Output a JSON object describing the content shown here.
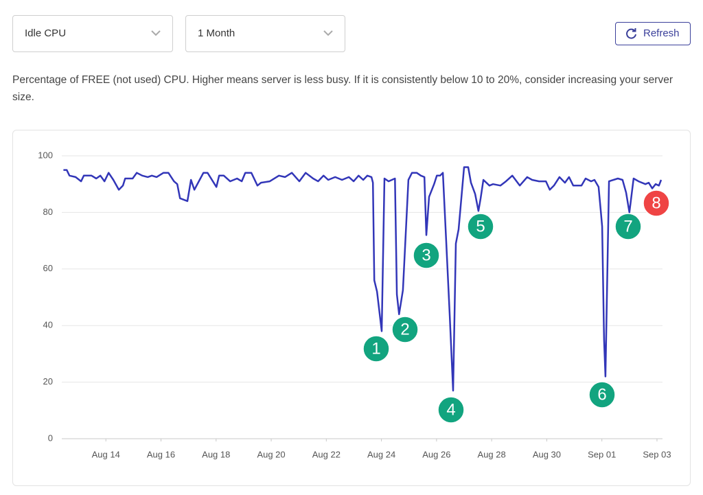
{
  "ui": {
    "metric_select": "Idle CPU",
    "range_select": "1 Month",
    "refresh_button": "Refresh",
    "description": "Percentage of FREE (not used) CPU. Higher means server is less busy. If it is consistently below 10 to 20%, consider increasing your server size."
  },
  "chart_data": {
    "type": "line",
    "color": "#3236b8",
    "x": [
      12.46,
      12.58,
      12.68,
      12.9,
      13.1,
      13.2,
      13.48,
      13.65,
      13.8,
      13.95,
      14.1,
      14.27,
      14.47,
      14.62,
      14.7,
      14.97,
      15.12,
      15.32,
      15.52,
      15.67,
      15.84,
      16.09,
      16.27,
      16.47,
      16.59,
      16.69,
      16.96,
      17.09,
      17.21,
      17.54,
      17.69,
      18.01,
      18.11,
      18.28,
      18.51,
      18.76,
      18.93,
      19.06,
      19.28,
      19.5,
      19.63,
      19.95,
      20.28,
      20.5,
      20.75,
      21.02,
      21.25,
      21.52,
      21.7,
      21.9,
      22.07,
      22.32,
      22.57,
      22.82,
      22.99,
      23.17,
      23.34,
      23.49,
      23.64,
      23.69,
      23.74,
      23.84,
      24.01,
      24.11,
      24.26,
      24.49,
      24.56,
      24.64,
      24.78,
      24.98,
      25.11,
      25.28,
      25.43,
      25.56,
      25.63,
      25.73,
      25.91,
      26.01,
      26.13,
      26.23,
      26.35,
      26.48,
      26.6,
      26.7,
      26.8,
      27.0,
      27.15,
      27.25,
      27.4,
      27.52,
      27.6,
      27.7,
      27.92,
      28.05,
      28.32,
      28.52,
      28.75,
      29.02,
      29.29,
      29.47,
      29.72,
      29.97,
      30.11,
      30.26,
      30.46,
      30.66,
      30.81,
      30.96,
      31.26,
      31.41,
      31.61,
      31.73,
      31.88,
      31.96,
      32.01,
      32.08,
      32.13,
      32.26,
      32.58,
      32.75,
      32.88,
      33.0,
      33.15,
      33.33,
      33.58,
      33.7,
      33.83,
      33.95,
      34.07,
      34.15
    ],
    "values": [
      95,
      95,
      93,
      92.5,
      91,
      93,
      93,
      92,
      93,
      91,
      94,
      91.5,
      88,
      89.5,
      92,
      92,
      94,
      93,
      92.5,
      93,
      92.5,
      94,
      94,
      91,
      90,
      85,
      84,
      91.5,
      88,
      94,
      94,
      89,
      93,
      93,
      91,
      92,
      91,
      94,
      94,
      89.5,
      90.5,
      91,
      93,
      92.5,
      94,
      91,
      94,
      92,
      91,
      93,
      91.5,
      92.5,
      91.5,
      92.5,
      91,
      93,
      91.5,
      93,
      92.5,
      90.5,
      56,
      52,
      38,
      92,
      91,
      92,
      51,
      44,
      52.5,
      91.5,
      94,
      94,
      93,
      92.5,
      72,
      85.5,
      90,
      93,
      93,
      94,
      70,
      43.5,
      17,
      69,
      74,
      96,
      96,
      90.5,
      86.5,
      80.5,
      85,
      91.5,
      89.5,
      90,
      89.5,
      91,
      93,
      89.5,
      92.5,
      91.5,
      91,
      91,
      88,
      89.5,
      92.5,
      90.5,
      92.5,
      89.5,
      89.5,
      92,
      91,
      91.5,
      89,
      80.5,
      75,
      35,
      22,
      91,
      92,
      91.5,
      87,
      80,
      92,
      91,
      90,
      90.5,
      88.5,
      90,
      89.5,
      91.5
    ],
    "xlim": [
      12.4,
      34.2
    ],
    "ylim": [
      0,
      100
    ],
    "yticks": [
      0,
      20,
      40,
      60,
      80,
      100
    ],
    "xticks": [
      {
        "value": 14,
        "label": "Aug 14"
      },
      {
        "value": 16,
        "label": "Aug 16"
      },
      {
        "value": 18,
        "label": "Aug 18"
      },
      {
        "value": 20,
        "label": "Aug 20"
      },
      {
        "value": 22,
        "label": "Aug 22"
      },
      {
        "value": 24,
        "label": "Aug 24"
      },
      {
        "value": 26,
        "label": "Aug 26"
      },
      {
        "value": 28,
        "label": "Aug 28"
      },
      {
        "value": 30,
        "label": "Aug 30"
      },
      {
        "value": 32,
        "label": "Sep 01"
      },
      {
        "value": 34,
        "label": "Sep 03"
      }
    ],
    "grid": true,
    "annotations": [
      {
        "label": "1",
        "color": "#12a47f"
      },
      {
        "label": "2",
        "color": "#12a47f"
      },
      {
        "label": "3",
        "color": "#12a47f"
      },
      {
        "label": "4",
        "color": "#12a47f"
      },
      {
        "label": "5",
        "color": "#12a47f"
      },
      {
        "label": "6",
        "color": "#12a47f"
      },
      {
        "label": "7",
        "color": "#12a47f"
      },
      {
        "label": "8",
        "color": "#ef4444"
      }
    ]
  }
}
